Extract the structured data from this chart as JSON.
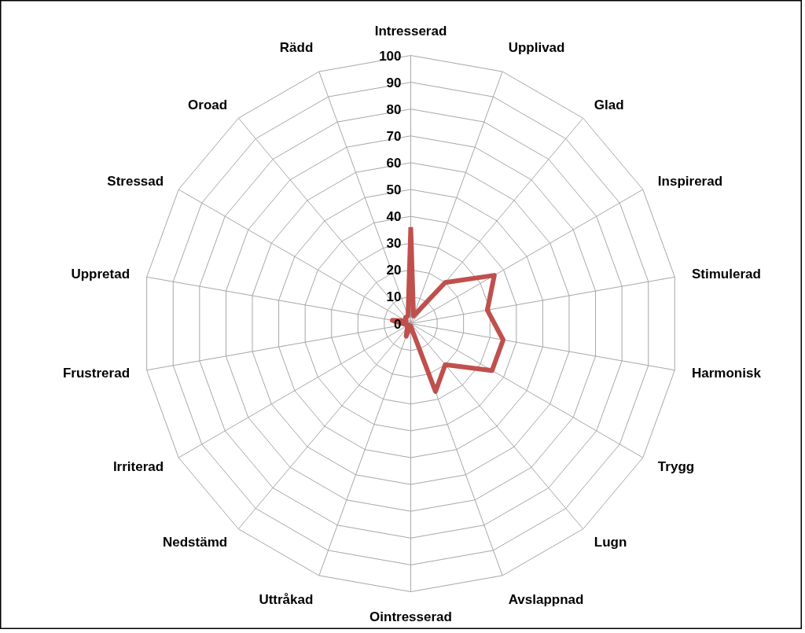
{
  "chart_data": {
    "type": "radar",
    "categories": [
      "Intresserad",
      "Upplivad",
      "Glad",
      "Inspirerad",
      "Stimulerad",
      "Harmonisk",
      "Trygg",
      "Lugn",
      "Avslappnad",
      "Ointresserad",
      "Uttråkad",
      "Nedstämd",
      "Irriterad",
      "Frustrerad",
      "Uppretad",
      "Stressad",
      "Oroad",
      "Rädd"
    ],
    "series": [
      {
        "color": "#c0504d",
        "values": [
          36,
          3,
          20,
          36,
          29,
          35,
          35,
          20,
          27,
          1,
          5,
          2,
          1,
          2,
          7,
          2,
          3,
          3
        ]
      }
    ],
    "ylim": [
      0,
      100
    ],
    "yticks": [
      0,
      10,
      20,
      30,
      40,
      50,
      60,
      70,
      80,
      90,
      100
    ],
    "grid": true,
    "marker": "none",
    "line_style": "solid"
  }
}
